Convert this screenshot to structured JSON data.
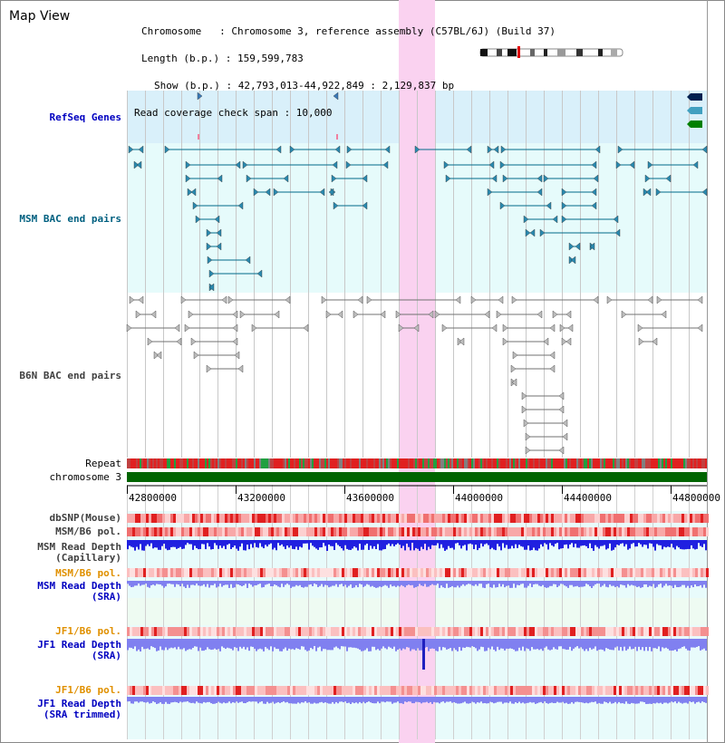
{
  "header": {
    "title": "Map View",
    "info_lines": [
      "Chromosome   : Chromosome 3, reference assembly (C57BL/6J) (Build 37)",
      "Length (b.p.) : 159,599,783",
      "Show (b.p.) : 42,793,013-44,922,849 : 2,129,837 bp",
      "Read coverage check span : 10,000"
    ]
  },
  "tracks": {
    "refseq": "RefSeq Genes",
    "msm_bac": "MSM BAC end pairs",
    "b6n_bac": "B6N BAC end pairs",
    "repeat": "Repeat",
    "chromosome": "chromosome 3",
    "dbsnp": "dbSNP(Mouse)",
    "msm_b6_pol": "MSM/B6 pol.",
    "msm_depth_cap_1": "MSM Read Depth",
    "msm_depth_cap_2": "(Capillary)",
    "msm_b6_pol_sra": "MSM/B6 pol.",
    "msm_depth_sra_1": "MSM Read Depth",
    "msm_depth_sra_2": "(SRA)",
    "jf1_b6_pol_1": "JF1/B6 pol.",
    "jf1_depth_sra_1": "JF1 Read Depth",
    "jf1_depth_sra_2": "(SRA)",
    "jf1_b6_pol_2": "JF1/B6 pol.",
    "jf1_depth_trim_1": "JF1 Read Depth",
    "jf1_depth_trim_2": "(SRA trimmed)"
  },
  "axis": {
    "ticks": [
      "42800000",
      "43200000",
      "43600000",
      "44000000",
      "44400000",
      "44800000"
    ]
  },
  "colors": {
    "refseq_bg": "#d9f0fa",
    "bac_bg": "#e6fbfb",
    "highlight": "#fad2f0",
    "chromosome": "#006400",
    "refseq_label": "#0000c0",
    "msm_label": "#006080",
    "b6n_label": "#404040",
    "depth_blue": "#2020e0",
    "depth_light": "#8080f0",
    "orange_label": "#e09000"
  }
}
